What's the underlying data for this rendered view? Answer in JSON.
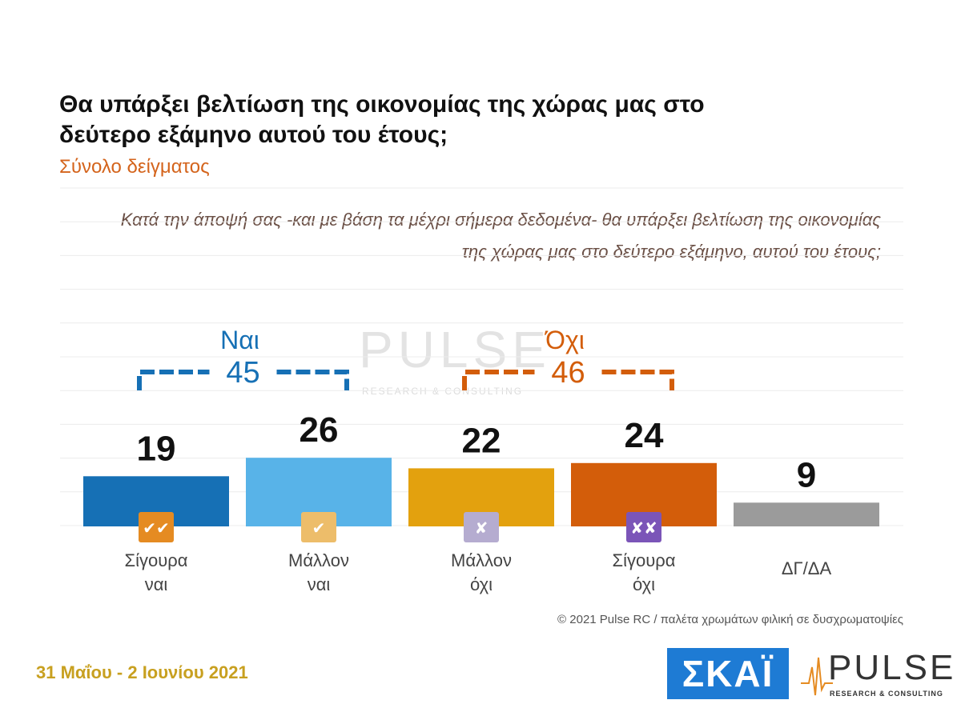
{
  "title": "Θα υπάρξει βελτίωση της οικονομίας της χώρας μας στο δεύτερο εξάμηνο αυτού του έτους;",
  "subtitle": "Σύνολο δείγματος",
  "question": "Κατά την άποψή σας -και με βάση τα μέχρι σήμερα δεδομένα- θα υπάρξει βελτίωση της οικονομίας της χώρας μας στο δεύτερο εξάμηνο, αυτού του έτους;",
  "chart_data": {
    "type": "bar",
    "categories": [
      [
        "Σίγουρα",
        "ναι"
      ],
      [
        "Μάλλον",
        "ναι"
      ],
      [
        "Μάλλον",
        "όχι"
      ],
      [
        "Σίγουρα",
        "όχι"
      ],
      [
        "ΔΓ/ΔΑ"
      ]
    ],
    "values": [
      19,
      26,
      22,
      24,
      9
    ],
    "colors": [
      "#1670b5",
      "#58b3e8",
      "#e3a10e",
      "#d35d0a",
      "#9b9b9b"
    ],
    "icons": [
      "double-check-icon",
      "check-icon",
      "cross-icon",
      "double-cross-icon",
      null
    ],
    "icon_colors": [
      "#e58b22",
      "#edbd6a",
      "#b5acd0",
      "#7b55b8",
      null
    ],
    "icon_glyphs": [
      "✔✔",
      "✔",
      "✘",
      "✘✘",
      ""
    ],
    "groups": [
      {
        "label": "Ναι",
        "total": 45,
        "from": 0,
        "to": 1,
        "color": "#1670b5"
      },
      {
        "label": "Όχι",
        "total": 46,
        "from": 2,
        "to": 3,
        "color": "#d35d0a"
      }
    ],
    "ylim": [
      0,
      40
    ],
    "grid": true
  },
  "watermark": {
    "word": "PULSE",
    "tagline": "RESEARCH & CONSULTING"
  },
  "copyright": "© 2021 Pulse RC  /  παλέτα χρωμάτων φιλική σε δυσχρωματοψίες",
  "date": "31 Μαΐου - 2 Ιουνίου 2021",
  "logos": {
    "skai": "ΣΚΑΪ",
    "pulse_word": "PULSE",
    "pulse_tagline": "RESEARCH & CONSULTING"
  }
}
